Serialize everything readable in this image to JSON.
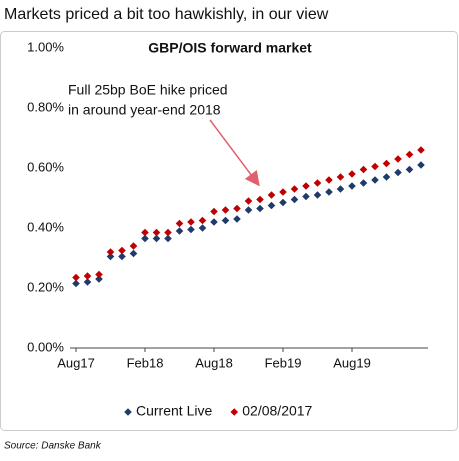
{
  "chart_data": {
    "type": "scatter",
    "title": "Markets priced a bit too hawkishly, in our view",
    "subtitle": "GBP/OIS forward market",
    "annotation": [
      "Full 25bp BoE hike priced",
      "in around year-end 2018"
    ],
    "source": "Source: Danske Bank",
    "categories": [
      "Aug17",
      null,
      null,
      null,
      null,
      null,
      "Feb18",
      null,
      null,
      null,
      null,
      null,
      "Aug18",
      null,
      null,
      null,
      null,
      null,
      "Feb19",
      null,
      null,
      null,
      null,
      null,
      "Aug19",
      null,
      null,
      null,
      null,
      null,
      null
    ],
    "series": [
      {
        "name": "Current Live",
        "color": "#1f3b6b",
        "values": [
          0.215,
          0.22,
          0.23,
          0.305,
          0.305,
          0.315,
          0.365,
          0.365,
          0.365,
          0.39,
          0.395,
          0.4,
          0.42,
          0.425,
          0.43,
          0.46,
          0.465,
          0.475,
          0.485,
          0.495,
          0.505,
          0.51,
          0.52,
          0.53,
          0.54,
          0.55,
          0.56,
          0.57,
          0.585,
          0.595,
          0.61
        ]
      },
      {
        "name": "02/08/2017",
        "color": "#c00000",
        "values": [
          0.235,
          0.24,
          0.245,
          0.32,
          0.325,
          0.34,
          0.385,
          0.385,
          0.385,
          0.415,
          0.42,
          0.425,
          0.455,
          0.46,
          0.465,
          0.49,
          0.495,
          0.51,
          0.52,
          0.53,
          0.54,
          0.55,
          0.56,
          0.57,
          0.58,
          0.595,
          0.605,
          0.615,
          0.63,
          0.645,
          0.66
        ]
      }
    ],
    "ylim": [
      0,
      1
    ],
    "yticks": [
      {
        "value": 0,
        "label": "0.00%"
      },
      {
        "value": 0.2,
        "label": "0.20%"
      },
      {
        "value": 0.4,
        "label": "0.40%"
      },
      {
        "value": 0.6,
        "label": "0.60%"
      },
      {
        "value": 0.8,
        "label": "0.80%"
      },
      {
        "value": 1,
        "label": "1.00%"
      }
    ],
    "grid": false,
    "legend": "bottom"
  }
}
